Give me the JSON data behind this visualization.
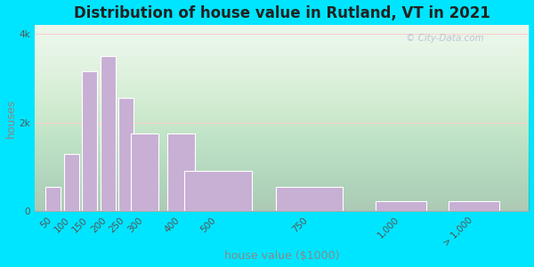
{
  "title": "Distribution of house value in Rutland, VT in 2021",
  "xlabel": "house value ($1000)",
  "ylabel": "houses",
  "bar_labels": [
    "50",
    "100",
    "150",
    "200",
    "250",
    "300",
    "400",
    "500",
    "750",
    "1,000",
    "> 1,000"
  ],
  "bar_positions": [
    50,
    100,
    150,
    200,
    250,
    300,
    400,
    500,
    750,
    1000,
    1200
  ],
  "bar_widths": [
    45,
    45,
    45,
    45,
    45,
    80,
    80,
    200,
    200,
    150,
    150
  ],
  "bar_values": [
    550,
    1300,
    3150,
    3500,
    2550,
    1750,
    1750,
    900,
    550,
    220,
    220
  ],
  "bar_color": "#c8afd4",
  "bar_edge_color": "#ffffff",
  "ylim": [
    0,
    4200
  ],
  "xlim": [
    0,
    1350
  ],
  "ytick_labels": [
    "0",
    "2k",
    "4k"
  ],
  "ytick_values": [
    0,
    2000,
    4000
  ],
  "bg_color_outer": "#00e5ff",
  "title_fontsize": 12,
  "axis_label_fontsize": 9,
  "tick_fontsize": 7.5,
  "watermark_text": "© City-Data.com"
}
